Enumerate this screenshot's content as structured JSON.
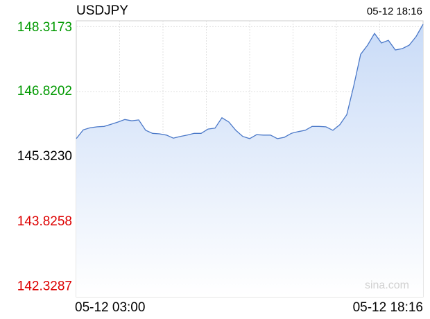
{
  "chart_data": {
    "type": "line",
    "title": "USDJPY",
    "timestamp": "05-12 18:16",
    "watermark": "sina.com",
    "categories": [
      "05-12 03:00",
      null,
      null,
      null,
      null,
      null,
      null,
      null,
      null,
      null,
      null,
      null,
      null,
      null,
      null,
      null,
      null,
      null,
      null,
      null,
      null,
      null,
      null,
      null,
      null,
      null,
      null,
      null,
      null,
      null,
      null,
      null,
      null,
      null,
      null,
      null,
      null,
      null,
      null,
      null,
      null,
      null,
      null,
      null,
      null,
      null,
      null,
      null,
      null,
      null,
      "05-12 18:16"
    ],
    "series": [
      {
        "name": "USDJPY",
        "color": "#4a78c8",
        "values": [
          145.74,
          145.94,
          145.99,
          146.01,
          146.02,
          146.07,
          146.12,
          146.18,
          146.15,
          146.17,
          145.93,
          145.86,
          145.85,
          145.82,
          145.75,
          145.79,
          145.82,
          145.86,
          145.86,
          145.96,
          145.98,
          146.22,
          146.12,
          145.93,
          145.79,
          145.74,
          145.83,
          145.82,
          145.82,
          145.74,
          145.77,
          145.86,
          145.9,
          145.93,
          146.02,
          146.02,
          146.01,
          145.93,
          146.06,
          146.29,
          146.95,
          147.68,
          147.89,
          148.16,
          147.94,
          148.0,
          147.78,
          147.81,
          147.89,
          148.09,
          148.37
        ]
      }
    ],
    "ylim": [
      142.1,
      148.45
    ],
    "yticks": [
      {
        "value": 148.3173,
        "label": "148.3173"
      },
      {
        "value": 146.8202,
        "label": "146.8202"
      },
      {
        "value": 145.323,
        "label": "145.3230"
      },
      {
        "value": 143.8258,
        "label": "143.8258"
      },
      {
        "value": 142.3287,
        "label": "142.3287"
      }
    ],
    "up_color": "#009900",
    "down_color": "#dd0000",
    "neutral_color": "#000000"
  }
}
